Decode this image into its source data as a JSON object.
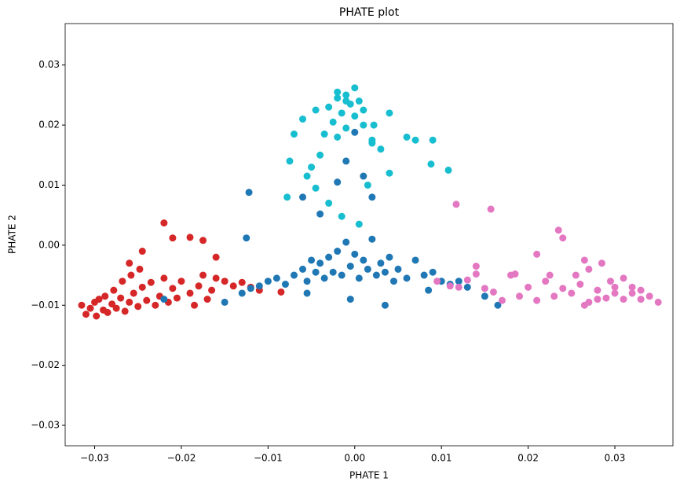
{
  "chart_data": {
    "type": "scatter",
    "title": "PHATE plot",
    "x_label": "PHATE 1",
    "y_label": "PHATE 2",
    "xlim": [
      -0.0334,
      0.0367
    ],
    "ylim": [
      -0.0334,
      0.0369
    ],
    "xticks": [
      {
        "value": -0.03,
        "label": "−0.03"
      },
      {
        "value": -0.02,
        "label": "−0.02"
      },
      {
        "value": -0.01,
        "label": "−0.01"
      },
      {
        "value": 0,
        "label": "0.00"
      },
      0.01,
      0.02,
      0.03
    ],
    "yticks": [
      {
        "value": -0.03,
        "label": "−0.03"
      },
      {
        "value": -0.02,
        "label": "−0.02"
      },
      {
        "value": -0.01,
        "label": "−0.01"
      },
      {
        "value": 0,
        "label": "0.00"
      },
      0.01,
      0.02,
      0.03
    ],
    "grid": false,
    "series": [
      {
        "color": "#d62728",
        "x": [
          -0.0315,
          -0.031,
          -0.0305,
          -0.03,
          -0.0298,
          -0.0295,
          -0.029,
          -0.0288,
          -0.0285,
          -0.028,
          -0.0278,
          -0.0275,
          -0.027,
          -0.0268,
          -0.0265,
          -0.026,
          -0.0258,
          -0.0255,
          -0.025,
          -0.0248,
          -0.0245,
          -0.024,
          -0.0235,
          -0.023,
          -0.0225,
          -0.022,
          -0.0215,
          -0.021,
          -0.0205,
          -0.02,
          -0.019,
          -0.0185,
          -0.018,
          -0.0175,
          -0.017,
          -0.0165,
          -0.016,
          -0.015,
          -0.014,
          -0.013,
          -0.012,
          -0.011,
          -0.0085,
          -0.022,
          -0.021,
          -0.019,
          -0.0175,
          -0.016,
          -0.0245,
          -0.026
        ],
        "values": [
          -0.01,
          -0.0115,
          -0.0105,
          -0.0095,
          -0.0118,
          -0.009,
          -0.0108,
          -0.0085,
          -0.0112,
          -0.0098,
          -0.0075,
          -0.0105,
          -0.0088,
          -0.006,
          -0.011,
          -0.0095,
          -0.005,
          -0.008,
          -0.0102,
          -0.004,
          -0.007,
          -0.0092,
          -0.0062,
          -0.01,
          -0.0085,
          -0.0055,
          -0.0095,
          -0.0072,
          -0.0088,
          -0.006,
          -0.008,
          -0.01,
          -0.0068,
          -0.005,
          -0.009,
          -0.0075,
          -0.0055,
          -0.006,
          -0.0068,
          -0.0062,
          -0.007,
          -0.0075,
          -0.0078,
          0.0037,
          0.0012,
          0.0013,
          0.0008,
          -0.002,
          -0.001,
          -0.003
        ]
      },
      {
        "color": "#1f77b4",
        "x": [
          -0.015,
          -0.013,
          -0.012,
          -0.011,
          -0.01,
          -0.009,
          -0.008,
          -0.007,
          -0.006,
          -0.0055,
          -0.005,
          -0.0045,
          -0.004,
          -0.0035,
          -0.003,
          -0.0025,
          -0.002,
          -0.0015,
          -0.001,
          -0.0005,
          0.0,
          0.0005,
          0.001,
          0.0015,
          0.002,
          0.0025,
          0.003,
          0.0035,
          0.004,
          0.0045,
          0.005,
          0.006,
          0.007,
          0.008,
          0.009,
          0.01,
          0.011,
          0.012,
          0.013,
          0.015,
          -0.0122,
          -0.006,
          -0.004,
          -0.002,
          -0.001,
          0.0,
          0.001,
          0.002,
          -0.0125,
          -0.0055,
          -0.0005,
          0.0035,
          0.0085,
          0.0165,
          -0.022
        ],
        "values": [
          -0.0095,
          -0.008,
          -0.0072,
          -0.0068,
          -0.006,
          -0.0055,
          -0.0065,
          -0.005,
          -0.004,
          -0.006,
          -0.0025,
          -0.0045,
          -0.003,
          -0.0055,
          -0.002,
          -0.0045,
          -0.001,
          -0.005,
          0.0005,
          -0.0035,
          -0.0015,
          -0.0055,
          -0.0025,
          -0.004,
          0.001,
          -0.005,
          -0.003,
          -0.0045,
          -0.002,
          -0.006,
          -0.004,
          -0.0055,
          -0.0025,
          -0.005,
          -0.0045,
          -0.006,
          -0.0065,
          -0.006,
          -0.007,
          -0.0085,
          0.0088,
          0.008,
          0.0052,
          0.0105,
          0.014,
          0.0188,
          0.0115,
          0.008,
          0.0012,
          -0.008,
          -0.009,
          -0.01,
          -0.0075,
          -0.01,
          -0.009
        ]
      },
      {
        "color": "#17becf",
        "x": [
          -0.003,
          -0.002,
          -0.0015,
          -0.001,
          -0.0005,
          0.0,
          0.0005,
          0.001,
          -0.0025,
          -0.002,
          -0.001,
          0.0,
          0.001,
          0.002,
          -0.0035,
          -0.0045,
          -0.006,
          -0.007,
          -0.0075,
          -0.005,
          -0.004,
          0.002,
          0.003,
          0.004,
          0.006,
          0.007,
          0.009,
          0.0088,
          0.0108,
          -0.0078,
          -0.0055,
          -0.0045,
          -0.003,
          -0.0015,
          0.0005,
          0.0015,
          0.004,
          -0.002,
          -0.001,
          0.0022
        ],
        "values": [
          0.023,
          0.0245,
          0.022,
          0.025,
          0.0235,
          0.0262,
          0.024,
          0.0225,
          0.0205,
          0.018,
          0.0195,
          0.0215,
          0.02,
          0.017,
          0.0185,
          0.0225,
          0.021,
          0.0185,
          0.014,
          0.013,
          0.015,
          0.0175,
          0.016,
          0.012,
          0.018,
          0.0175,
          0.0175,
          0.0135,
          0.0125,
          0.008,
          0.0115,
          0.0095,
          0.007,
          0.0048,
          0.0035,
          0.01,
          0.022,
          0.0255,
          0.024,
          0.02
        ]
      },
      {
        "color": "#e377c2",
        "x": [
          0.0095,
          0.011,
          0.012,
          0.013,
          0.014,
          0.015,
          0.016,
          0.017,
          0.018,
          0.019,
          0.02,
          0.021,
          0.022,
          0.023,
          0.024,
          0.025,
          0.026,
          0.027,
          0.028,
          0.029,
          0.03,
          0.031,
          0.032,
          0.033,
          0.034,
          0.035,
          0.0255,
          0.027,
          0.0285,
          0.0295,
          0.031,
          0.032,
          0.0265,
          0.028,
          0.0117,
          0.0157,
          0.0235,
          0.024,
          0.021,
          0.0265,
          0.014,
          0.0185,
          0.0225,
          0.03,
          0.033
        ],
        "values": [
          -0.006,
          -0.0068,
          -0.007,
          -0.0058,
          -0.0035,
          -0.0072,
          -0.0078,
          -0.0092,
          -0.005,
          -0.0085,
          -0.007,
          -0.0092,
          -0.006,
          -0.0085,
          -0.0072,
          -0.008,
          -0.0065,
          -0.0095,
          -0.0075,
          -0.0088,
          -0.007,
          -0.009,
          -0.008,
          -0.009,
          -0.0085,
          -0.0095,
          -0.005,
          -0.004,
          -0.003,
          -0.006,
          -0.0055,
          -0.007,
          -0.01,
          -0.009,
          0.0068,
          0.006,
          0.0025,
          0.0012,
          -0.0015,
          -0.0025,
          -0.0048,
          -0.0048,
          -0.005,
          -0.008,
          -0.0075
        ]
      }
    ]
  }
}
